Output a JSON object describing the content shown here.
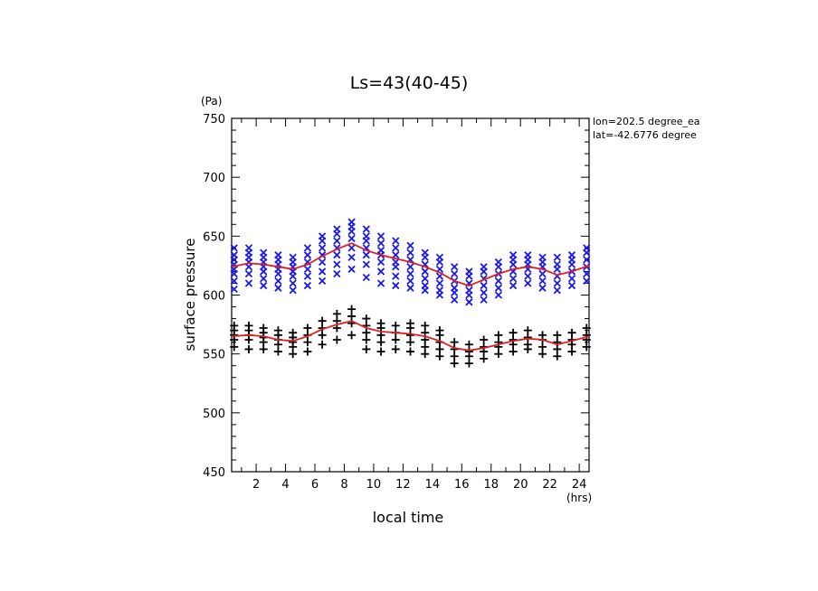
{
  "chart_data": {
    "type": "scatter",
    "title": "Ls=43(40-45)",
    "xlabel": "local time",
    "ylabel": "surface pressure",
    "x_unit": "(hrs)",
    "y_unit": "(Pa)",
    "annotations": [
      "lon=202.5 degree_ea",
      "lat=-42.6776 degree"
    ],
    "xlim": [
      0.33,
      24.67
    ],
    "ylim": [
      450,
      750
    ],
    "x_ticks": [
      2,
      4,
      6,
      8,
      10,
      12,
      14,
      16,
      18,
      20,
      22,
      24
    ],
    "y_ticks": [
      450,
      500,
      550,
      600,
      650,
      700,
      750
    ],
    "grid": false,
    "colors": {
      "x_marker": "#1a1aee",
      "plus_marker": "#000000",
      "mean_line": "#e02020",
      "axis": "#000000"
    },
    "series": [
      {
        "marker": "x",
        "x": [
          0.5,
          1.5,
          2.5,
          3.5,
          4.5,
          5.5,
          6.5,
          7.5,
          8.5,
          9.5,
          10.5,
          11.5,
          12.5,
          13.5,
          14.5,
          15.5,
          16.5,
          17.5,
          18.5,
          19.5,
          20.5,
          21.5,
          22.5,
          23.5,
          24.5
        ],
        "y": [
          [
            605,
            612,
            618,
            622,
            626,
            630,
            634,
            640
          ],
          [
            610,
            618,
            624,
            628,
            632,
            636,
            640
          ],
          [
            608,
            614,
            620,
            624,
            628,
            632,
            636
          ],
          [
            606,
            612,
            618,
            622,
            626,
            630,
            634
          ],
          [
            604,
            610,
            616,
            620,
            624,
            628,
            632
          ],
          [
            608,
            616,
            622,
            628,
            634,
            640
          ],
          [
            612,
            620,
            628,
            634,
            640,
            646,
            650
          ],
          [
            618,
            626,
            634,
            640,
            646,
            652,
            656
          ],
          [
            622,
            632,
            640,
            648,
            654,
            658,
            662
          ],
          [
            615,
            626,
            634,
            640,
            646,
            650,
            656
          ],
          [
            610,
            620,
            628,
            634,
            638,
            644,
            650
          ],
          [
            608,
            616,
            624,
            628,
            634,
            640,
            646
          ],
          [
            606,
            612,
            618,
            624,
            630,
            636,
            642
          ],
          [
            604,
            608,
            614,
            620,
            626,
            632,
            636
          ],
          [
            600,
            604,
            610,
            616,
            622,
            628,
            632
          ],
          [
            596,
            602,
            606,
            612,
            618,
            624
          ],
          [
            594,
            600,
            604,
            610,
            616,
            620
          ],
          [
            596,
            602,
            608,
            614,
            620,
            624
          ],
          [
            600,
            606,
            612,
            618,
            624,
            628
          ],
          [
            608,
            614,
            620,
            626,
            630,
            634
          ],
          [
            610,
            616,
            622,
            626,
            630,
            634
          ],
          [
            606,
            612,
            618,
            624,
            628,
            632
          ],
          [
            604,
            610,
            616,
            622,
            626,
            632
          ],
          [
            608,
            614,
            620,
            626,
            630,
            634
          ],
          [
            612,
            618,
            624,
            630,
            636,
            640
          ]
        ]
      },
      {
        "marker": "+",
        "x": [
          0.5,
          1.5,
          2.5,
          3.5,
          4.5,
          5.5,
          6.5,
          7.5,
          8.5,
          9.5,
          10.5,
          11.5,
          12.5,
          13.5,
          14.5,
          15.5,
          16.5,
          17.5,
          18.5,
          19.5,
          20.5,
          21.5,
          22.5,
          23.5,
          24.5
        ],
        "y": [
          [
            556,
            562,
            566,
            570,
            574
          ],
          [
            554,
            562,
            566,
            570,
            574
          ],
          [
            554,
            560,
            564,
            568,
            572
          ],
          [
            552,
            558,
            562,
            566,
            570
          ],
          [
            550,
            556,
            560,
            564,
            568
          ],
          [
            552,
            560,
            566,
            572
          ],
          [
            558,
            566,
            572,
            578
          ],
          [
            562,
            572,
            578,
            584
          ],
          [
            566,
            576,
            582,
            588
          ],
          [
            554,
            562,
            568,
            574,
            580
          ],
          [
            552,
            560,
            566,
            572,
            576
          ],
          [
            554,
            562,
            568,
            574
          ],
          [
            552,
            560,
            566,
            572,
            576
          ],
          [
            550,
            556,
            562,
            568,
            574
          ],
          [
            548,
            554,
            560,
            566,
            570
          ],
          [
            542,
            548,
            554,
            560
          ],
          [
            542,
            548,
            552,
            558
          ],
          [
            546,
            552,
            556,
            562
          ],
          [
            550,
            556,
            560,
            566
          ],
          [
            552,
            558,
            562,
            568
          ],
          [
            554,
            558,
            564,
            570
          ],
          [
            550,
            556,
            562,
            566
          ],
          [
            548,
            554,
            560,
            566
          ],
          [
            552,
            558,
            562,
            568
          ],
          [
            556,
            562,
            566,
            572
          ]
        ]
      }
    ],
    "mean_lines": [
      {
        "x": [
          0.33,
          1.5,
          2.5,
          3.5,
          4.5,
          5.5,
          6.5,
          7.5,
          8.5,
          9.5,
          10.5,
          11.5,
          12.5,
          13.5,
          14.5,
          15.5,
          16.5,
          17.5,
          18.5,
          19.5,
          20.5,
          21.5,
          22.5,
          23.5,
          24.67
        ],
        "y": [
          624,
          627,
          626,
          624,
          622,
          626,
          633,
          639,
          644,
          638,
          634,
          631,
          628,
          624,
          619,
          612,
          608,
          613,
          618,
          622,
          624,
          622,
          617,
          620,
          625
        ]
      },
      {
        "x": [
          0.33,
          1.5,
          2.5,
          3.5,
          4.5,
          5.5,
          6.5,
          7.5,
          8.5,
          9.5,
          10.5,
          11.5,
          12.5,
          13.5,
          14.5,
          15.5,
          16.5,
          17.5,
          18.5,
          19.5,
          20.5,
          21.5,
          22.5,
          23.5,
          24.67
        ],
        "y": [
          565,
          566,
          565,
          562,
          561,
          565,
          571,
          575,
          578,
          572,
          569,
          568,
          567,
          565,
          561,
          555,
          553,
          555,
          558,
          561,
          563,
          562,
          558,
          561,
          565
        ]
      }
    ]
  }
}
